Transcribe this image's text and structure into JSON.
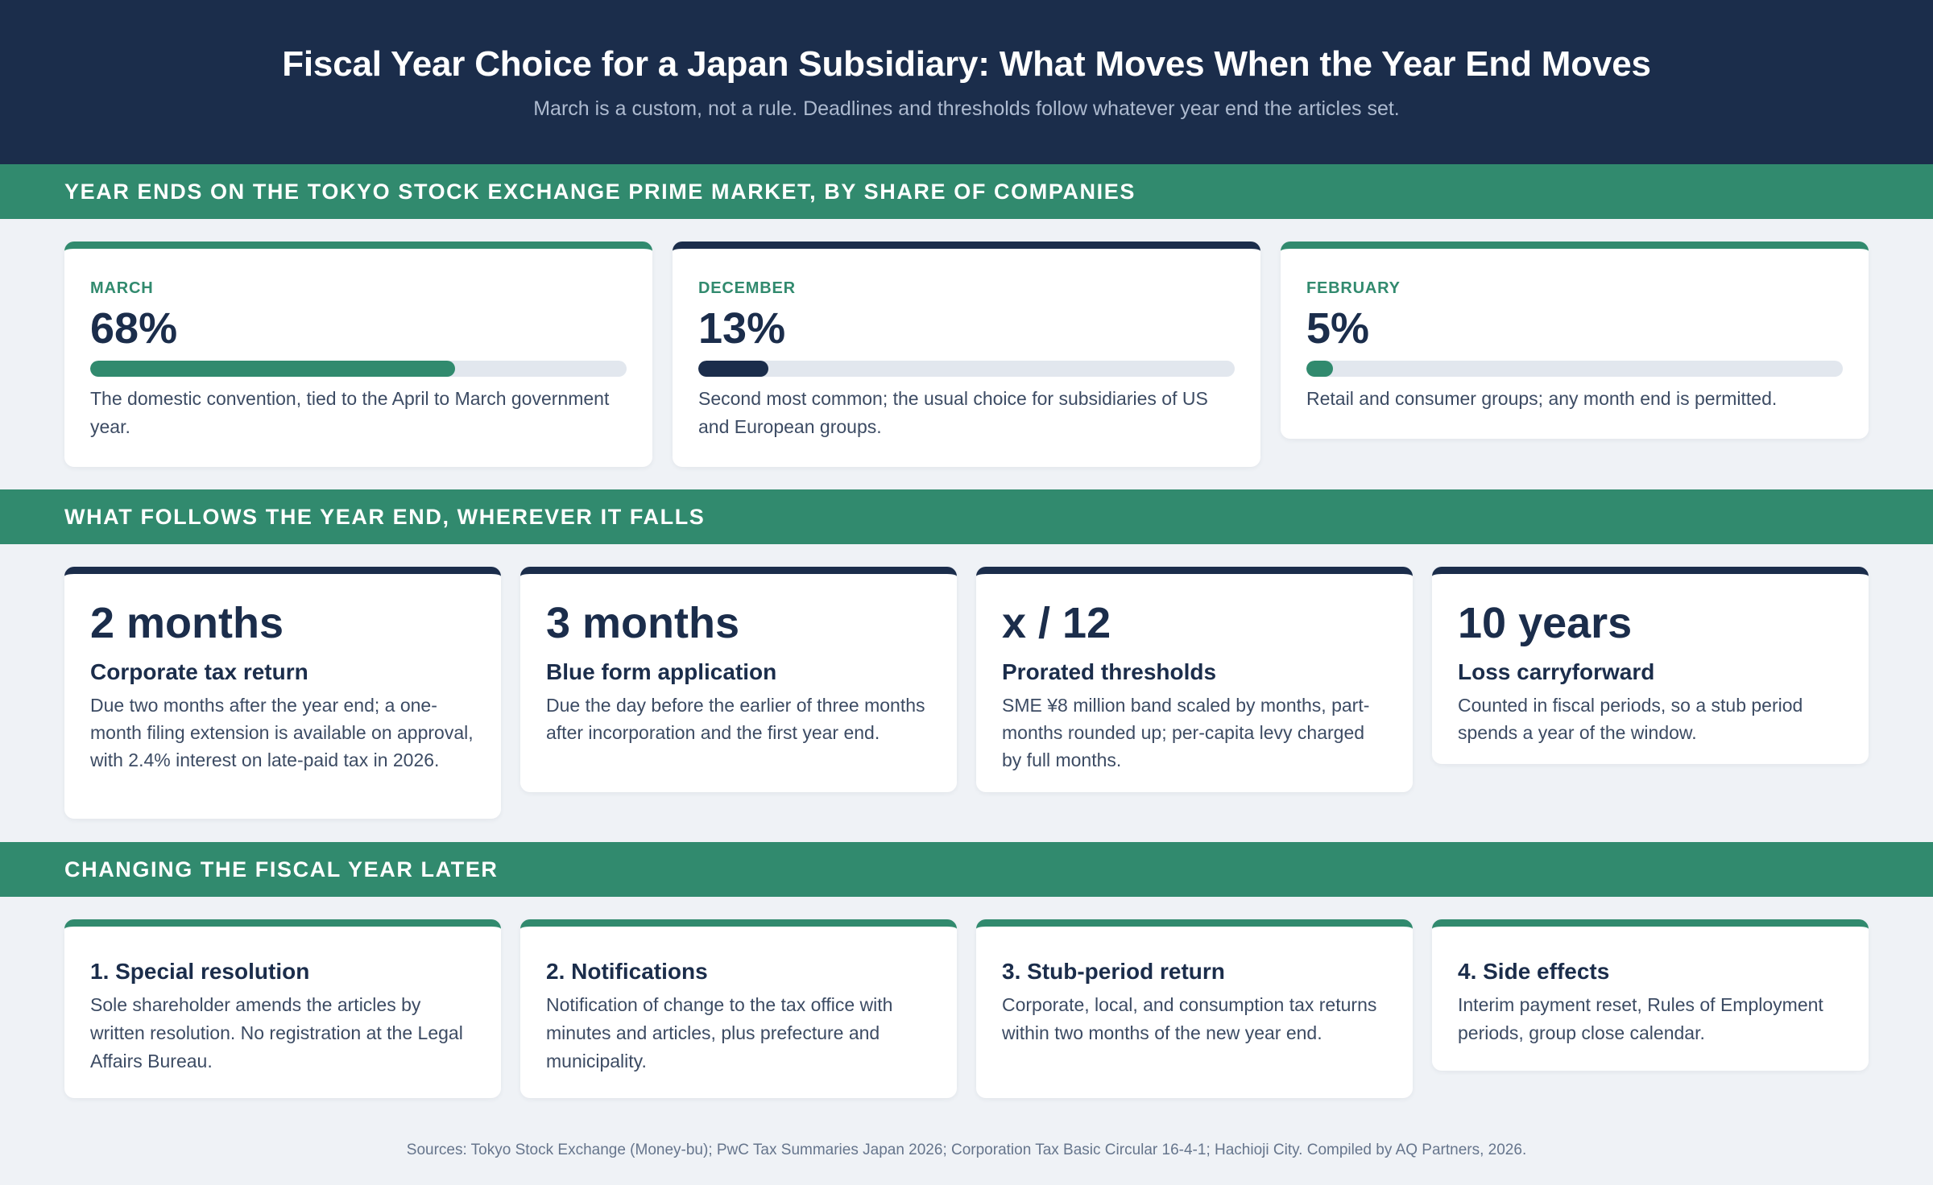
{
  "header": {
    "title": "Fiscal Year Choice for a Japan Subsidiary: What Moves When the Year End Moves",
    "subtitle": "March is a custom, not a rule. Deadlines and thresholds follow whatever year end the articles set."
  },
  "sections": {
    "shares": "YEAR ENDS ON THE TOKYO STOCK EXCHANGE PRIME MARKET, BY SHARE OF COMPANIES",
    "follows": "WHAT FOLLOWS THE YEAR END, WHEREVER IT FALLS",
    "changing": "CHANGING THE FISCAL YEAR LATER"
  },
  "shares": [
    {
      "label": "MARCH",
      "pct": "68%",
      "value": 68,
      "desc": "The domestic convention, tied to the April to March government year."
    },
    {
      "label": "DECEMBER",
      "pct": "13%",
      "value": 13,
      "desc": "Second most common; the usual choice for subsidiaries of US and European groups."
    },
    {
      "label": "FEBRUARY",
      "pct": "5%",
      "value": 5,
      "desc": "Retail and consumer groups; any month end is permitted."
    }
  ],
  "facts": [
    {
      "big": "2 months",
      "title": "Corporate tax return",
      "desc": "Due two months after the year end; a one-month filing extension is available on approval, with 2.4% interest on late-paid tax in 2026."
    },
    {
      "big": "3 months",
      "title": "Blue form application",
      "desc": "Due the day before the earlier of three months after incorporation and the first year end."
    },
    {
      "big": "x / 12",
      "title": "Prorated thresholds",
      "desc": "SME ¥8 million band scaled by months, part-months rounded up; per-capita levy charged by full months."
    },
    {
      "big": "10 years",
      "title": "Loss carryforward",
      "desc": "Counted in fiscal periods, so a stub period spends a year of the window."
    }
  ],
  "steps": [
    {
      "title": "1. Special resolution",
      "desc": "Sole shareholder amends the articles by written resolution. No registration at the Legal Affairs Bureau."
    },
    {
      "title": "2. Notifications",
      "desc": "Notification of change to the tax office with minutes and articles, plus prefecture and municipality."
    },
    {
      "title": "3. Stub-period return",
      "desc": "Corporate, local, and consumption tax returns within two months of the new year end."
    },
    {
      "title": "4. Side effects",
      "desc": "Interim payment reset, Rules of Employment periods, group close calendar."
    }
  ],
  "sources": "Sources: Tokyo Stock Exchange (Money-bu); PwC Tax Summaries Japan 2026; Corporation Tax Basic Circular 16-4-1; Hachioji City. Compiled by AQ Partners, 2026."
}
